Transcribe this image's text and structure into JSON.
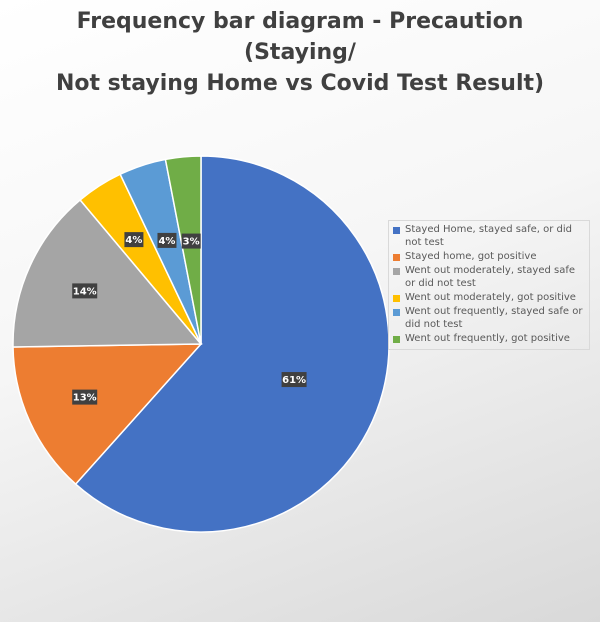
{
  "chart_data": {
    "type": "pie",
    "title": "Frequency bar diagram - Precaution (Staying/ Not staying Home vs Covid Test Result)",
    "title_lines": [
      "Frequency bar diagram - Precaution (Staying/",
      "Not staying Home vs Covid Test Result)"
    ],
    "legend_position": "right",
    "slices": [
      {
        "name": "Stayed Home, stayed safe, or did not test",
        "value": 61,
        "label": "61%",
        "color": "#4472C4"
      },
      {
        "name": "Stayed home, got positive",
        "value": 13,
        "label": "13%",
        "color": "#ED7D31"
      },
      {
        "name": "Went out moderately, stayed safe or did not test",
        "value": 14,
        "label": "14%",
        "color": "#A5A5A5"
      },
      {
        "name": "Went out moderately, got positive",
        "value": 4,
        "label": "4%",
        "color": "#FFC000"
      },
      {
        "name": "Went out frequently, stayed safe or did not test",
        "value": 4,
        "label": "4%",
        "color": "#5B9BD5"
      },
      {
        "name": "Went out frequently, got positive",
        "value": 3,
        "label": "3%",
        "color": "#70AD47"
      }
    ]
  }
}
